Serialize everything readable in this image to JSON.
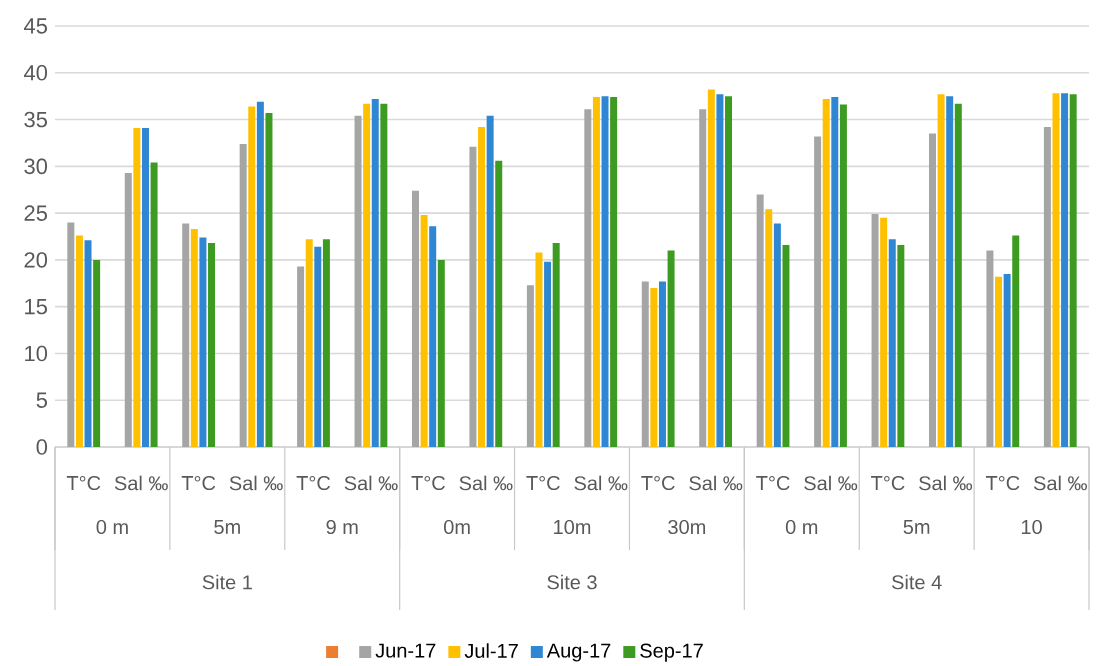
{
  "chart_data": {
    "type": "bar",
    "categories": [
      "T°C",
      "Sal ‰",
      "T°C",
      "Sal ‰",
      "T°C",
      "Sal ‰",
      "T°C",
      "Sal ‰",
      "T°C",
      "Sal ‰",
      "T°C",
      "Sal ‰",
      "T°C",
      "Sal ‰",
      "T°C",
      "Sal ‰",
      "T°C",
      "Sal ‰"
    ],
    "series": [
      {
        "color": "#ed7d31",
        "values": [
          null,
          null,
          null,
          null,
          null,
          null,
          null,
          null,
          null,
          null,
          null,
          null,
          null,
          null,
          null,
          null,
          null,
          null
        ]
      },
      {
        "name": "Jun-17",
        "color": "#a5a5a5",
        "values": [
          24.0,
          29.3,
          23.9,
          32.4,
          19.3,
          35.4,
          27.4,
          32.1,
          17.3,
          36.1,
          17.7,
          36.1,
          27.0,
          33.2,
          24.9,
          33.5,
          21.0,
          34.2
        ]
      },
      {
        "name": "Jul-17",
        "color": "#ffc000",
        "values": [
          22.6,
          34.1,
          23.3,
          36.4,
          22.2,
          36.7,
          24.8,
          34.2,
          20.8,
          37.4,
          17.0,
          38.2,
          25.4,
          37.2,
          24.5,
          37.7,
          18.2,
          37.8
        ]
      },
      {
        "name": "Aug-17",
        "color": "#2f86d2",
        "values": [
          22.1,
          34.1,
          22.4,
          36.9,
          21.4,
          37.2,
          23.6,
          35.4,
          19.8,
          37.5,
          17.7,
          37.7,
          23.9,
          37.4,
          22.2,
          37.5,
          18.5,
          37.8
        ]
      },
      {
        "name": "Sep-17",
        "color": "#3e9b22",
        "values": [
          20.0,
          30.4,
          21.8,
          35.7,
          22.2,
          36.7,
          20.0,
          30.6,
          21.8,
          37.4,
          21.0,
          37.5,
          21.6,
          36.6,
          21.6,
          36.7,
          22.6,
          37.7
        ]
      }
    ],
    "annotations": [
      "0 m",
      "5m",
      "9 m",
      "0m",
      "10m",
      "30m",
      "0 m",
      "5m",
      "10",
      "Site 1",
      "Site 3",
      "Site 4"
    ],
    "ylim": [
      0,
      45
    ],
    "yticks": [
      0,
      5,
      10,
      15,
      20,
      25,
      30,
      35,
      40,
      45
    ],
    "grid": "y",
    "legend": "bottom"
  }
}
